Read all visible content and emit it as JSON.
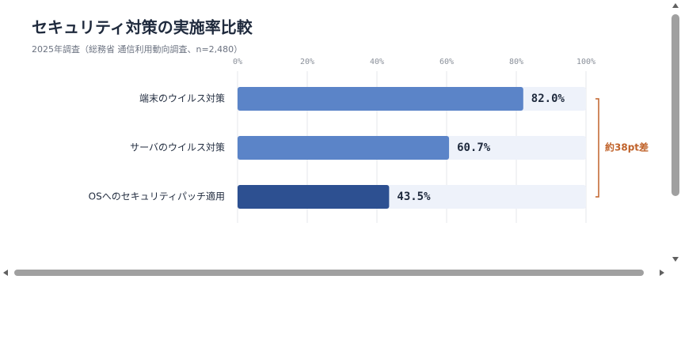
{
  "chart_data": {
    "type": "bar",
    "orientation": "horizontal",
    "title": "セキュリティ対策の実施率比較",
    "subtitle": "2025年調査（総務省 通信利用動向調査、n=2,480）",
    "categories": [
      "端末のウイルス対策",
      "サーバのウイルス対策",
      "OSへのセキュリティパッチ適用"
    ],
    "values": [
      82.0,
      60.7,
      43.5
    ],
    "value_labels": [
      "82.0%",
      "60.7%",
      "43.5%"
    ],
    "colors": [
      "#5b84c8",
      "#5b84c8",
      "#2d5091"
    ],
    "track_color": "#eef2fa",
    "xlim": [
      0,
      100
    ],
    "xticks": [
      {
        "value": 0,
        "label": "0%"
      },
      {
        "value": 20,
        "label": "20%"
      },
      {
        "value": 40,
        "label": "40%"
      },
      {
        "value": 60,
        "label": "60%"
      },
      {
        "value": 80,
        "label": "80%"
      },
      {
        "value": 100,
        "label": "100%"
      }
    ],
    "grid": true,
    "annotation": "約38pt差",
    "annotation_color": "#c0622a"
  }
}
